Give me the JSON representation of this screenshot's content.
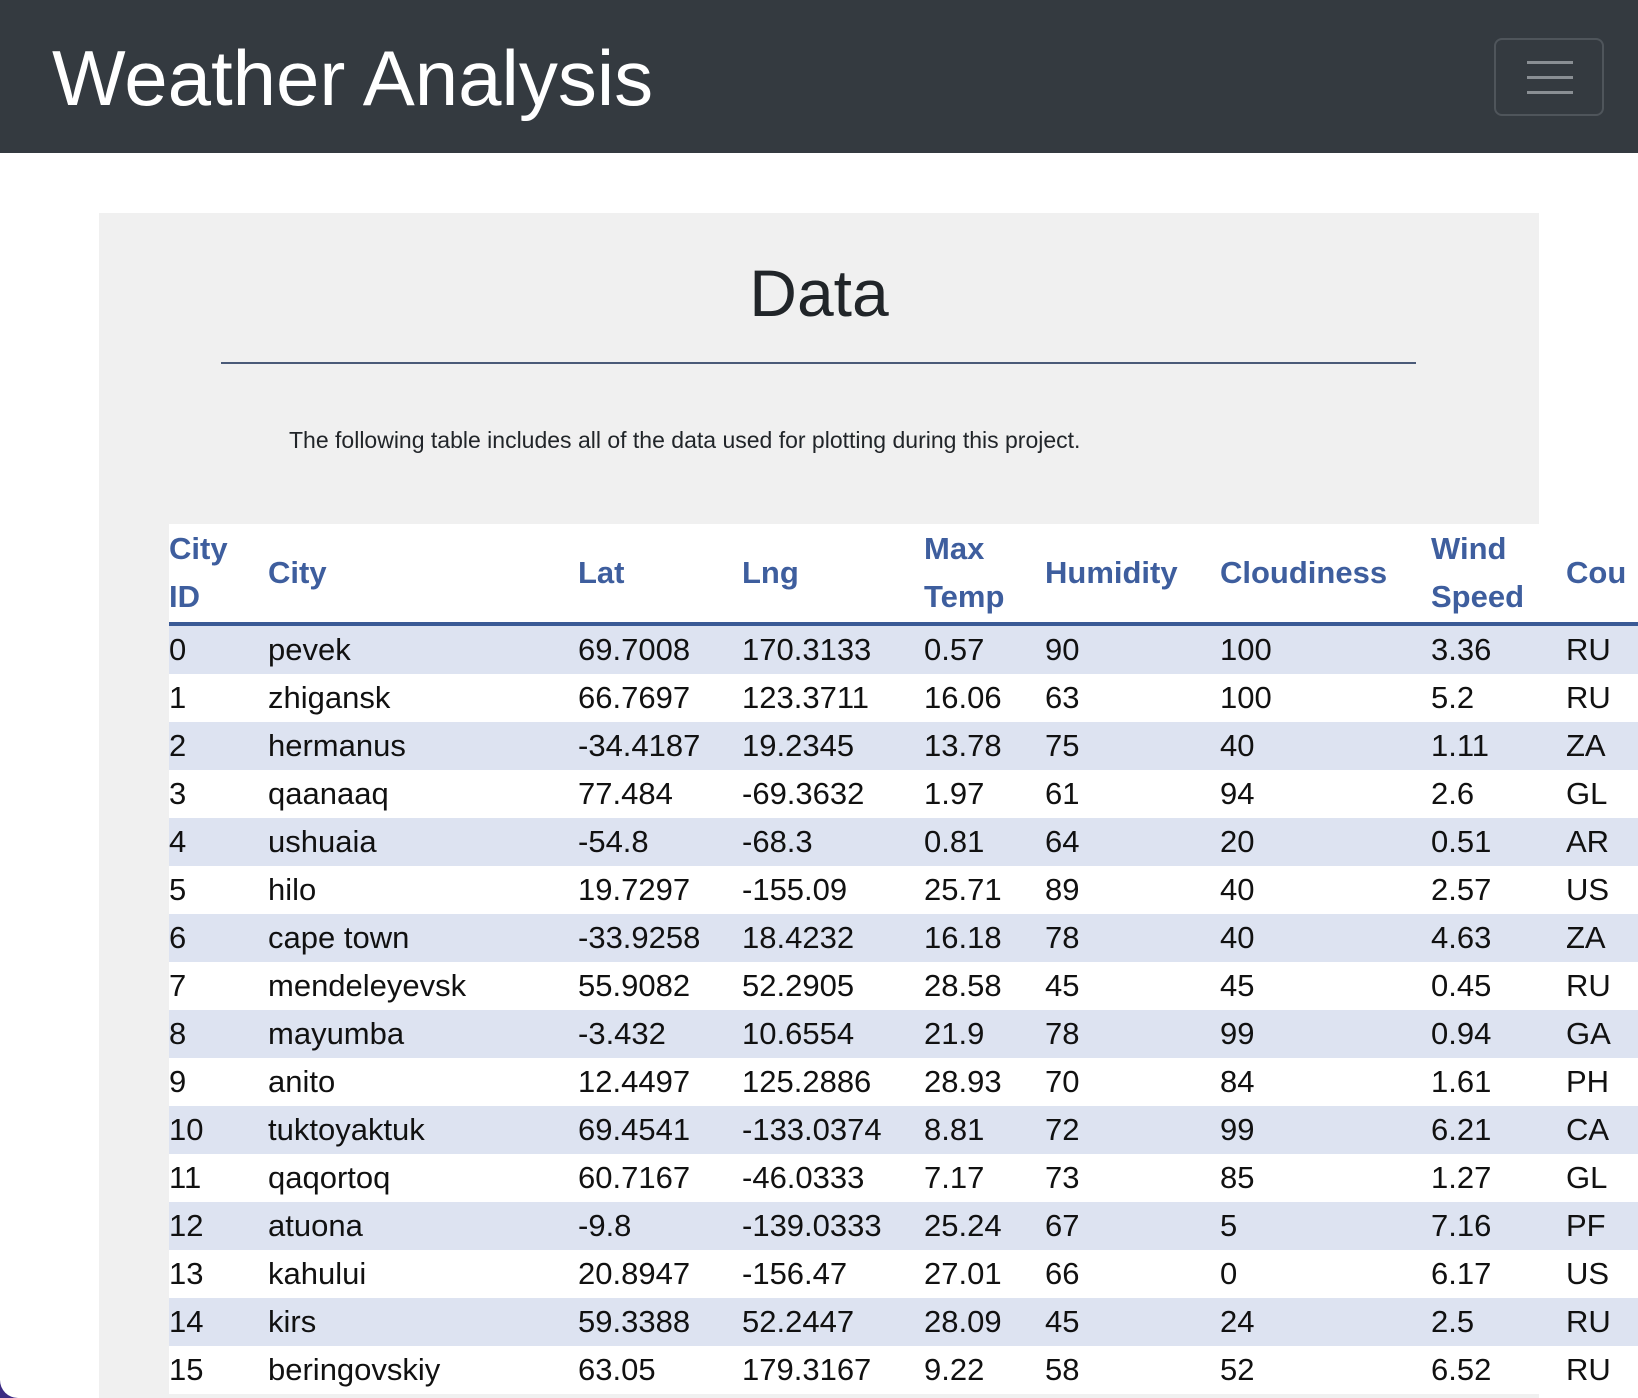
{
  "app": {
    "brand": "Weather Analysis"
  },
  "navbar": {
    "toggler_icon": "hamburger-menu-icon"
  },
  "section": {
    "title": "Data",
    "description": "The following table includes all of the data used for plotting during this project."
  },
  "table": {
    "headers": [
      {
        "lines": [
          "City",
          "ID"
        ]
      },
      {
        "lines": [
          "City"
        ]
      },
      {
        "lines": [
          "Lat"
        ]
      },
      {
        "lines": [
          "Lng"
        ]
      },
      {
        "lines": [
          "Max",
          "Temp"
        ]
      },
      {
        "lines": [
          "Humidity"
        ]
      },
      {
        "lines": [
          "Cloudiness"
        ]
      },
      {
        "lines": [
          "Wind",
          "Speed"
        ]
      },
      {
        "lines": [
          "Cou"
        ]
      }
    ],
    "rows": [
      [
        "0",
        "pevek",
        "69.7008",
        "170.3133",
        "0.57",
        "90",
        "100",
        "3.36",
        "RU"
      ],
      [
        "1",
        "zhigansk",
        "66.7697",
        "123.3711",
        "16.06",
        "63",
        "100",
        "5.2",
        "RU"
      ],
      [
        "2",
        "hermanus",
        "-34.4187",
        "19.2345",
        "13.78",
        "75",
        "40",
        "1.11",
        "ZA"
      ],
      [
        "3",
        "qaanaaq",
        "77.484",
        "-69.3632",
        "1.97",
        "61",
        "94",
        "2.6",
        "GL"
      ],
      [
        "4",
        "ushuaia",
        "-54.8",
        "-68.3",
        "0.81",
        "64",
        "20",
        "0.51",
        "AR"
      ],
      [
        "5",
        "hilo",
        "19.7297",
        "-155.09",
        "25.71",
        "89",
        "40",
        "2.57",
        "US"
      ],
      [
        "6",
        "cape town",
        "-33.9258",
        "18.4232",
        "16.18",
        "78",
        "40",
        "4.63",
        "ZA"
      ],
      [
        "7",
        "mendeleyevsk",
        "55.9082",
        "52.2905",
        "28.58",
        "45",
        "45",
        "0.45",
        "RU"
      ],
      [
        "8",
        "mayumba",
        "-3.432",
        "10.6554",
        "21.9",
        "78",
        "99",
        "0.94",
        "GA"
      ],
      [
        "9",
        "anito",
        "12.4497",
        "125.2886",
        "28.93",
        "70",
        "84",
        "1.61",
        "PH"
      ],
      [
        "10",
        "tuktoyaktuk",
        "69.4541",
        "-133.0374",
        "8.81",
        "72",
        "99",
        "6.21",
        "CA"
      ],
      [
        "11",
        "qaqortoq",
        "60.7167",
        "-46.0333",
        "7.17",
        "73",
        "85",
        "1.27",
        "GL"
      ],
      [
        "12",
        "atuona",
        "-9.8",
        "-139.0333",
        "25.24",
        "67",
        "5",
        "7.16",
        "PF"
      ],
      [
        "13",
        "kahului",
        "20.8947",
        "-156.47",
        "27.01",
        "66",
        "0",
        "6.17",
        "US"
      ],
      [
        "14",
        "kirs",
        "59.3388",
        "52.2447",
        "28.09",
        "45",
        "24",
        "2.5",
        "RU"
      ],
      [
        "15",
        "beringovskiy",
        "63.05",
        "179.3167",
        "9.22",
        "58",
        "52",
        "6.52",
        "RU"
      ]
    ]
  }
}
